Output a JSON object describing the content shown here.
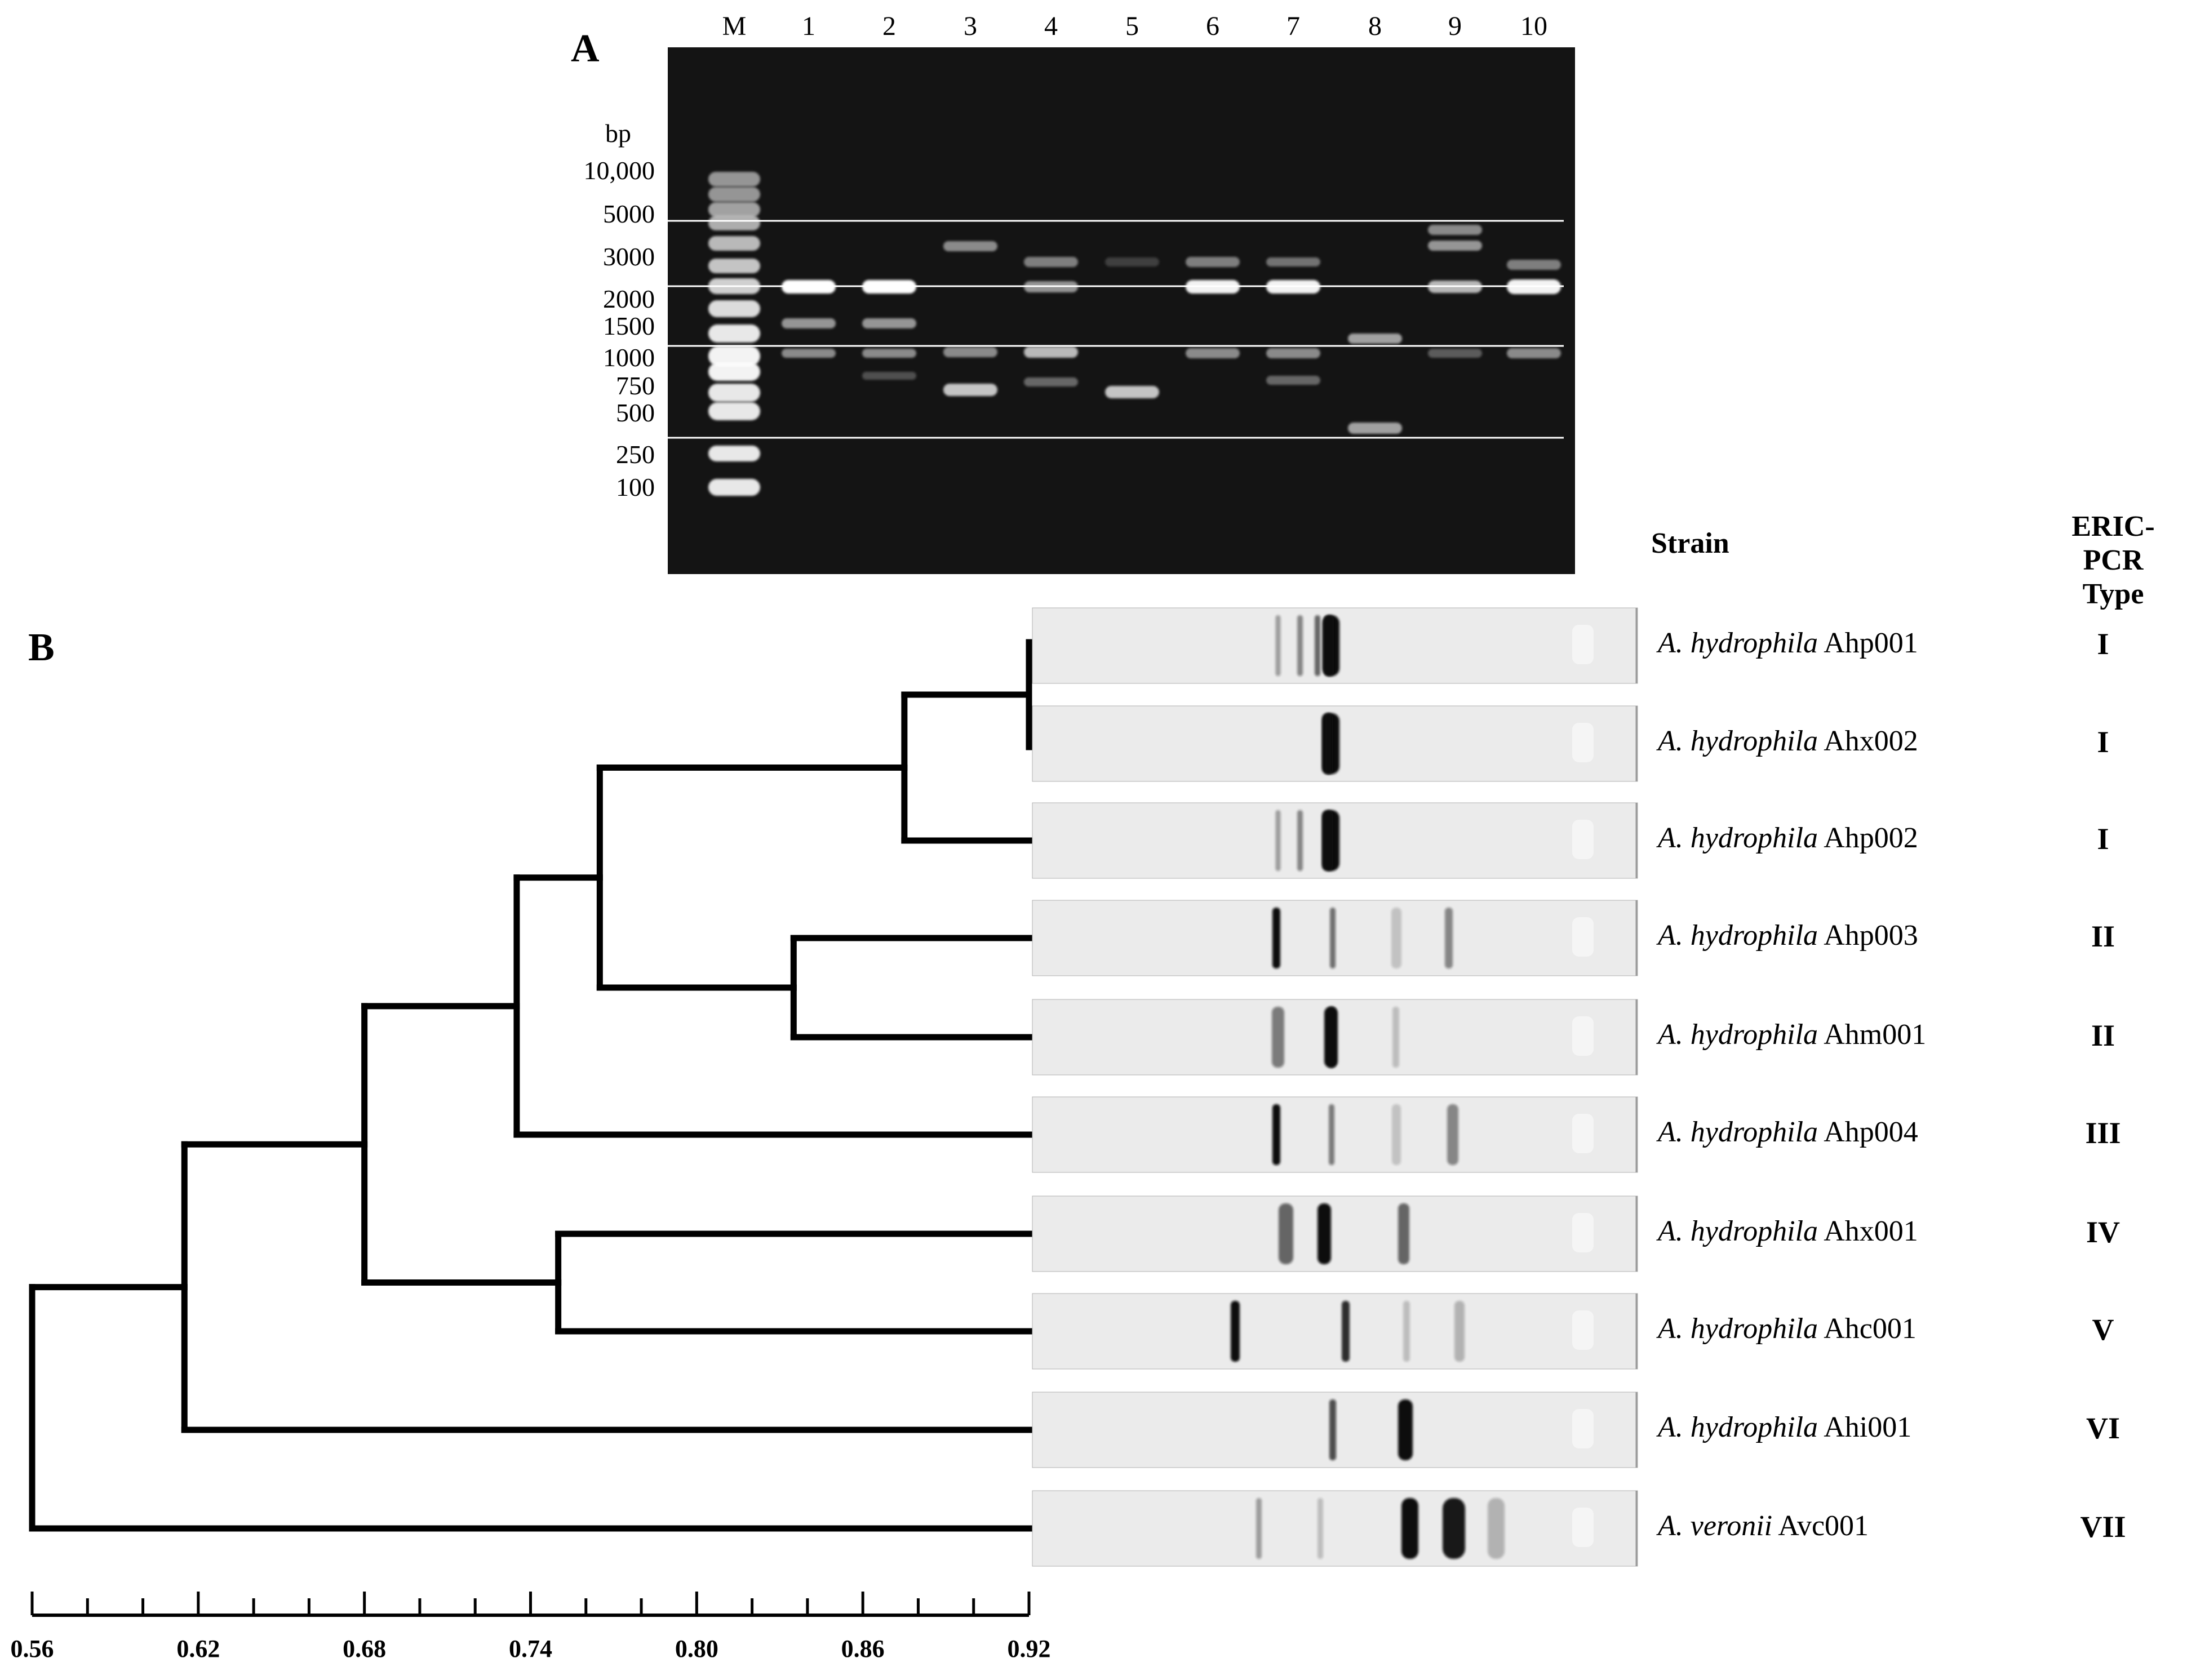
{
  "panel_a": {
    "label": "A",
    "lanes": [
      "M",
      "1",
      "2",
      "3",
      "4",
      "5",
      "6",
      "7",
      "8",
      "9",
      "10"
    ],
    "size_unit": "bp",
    "ladder_sizes": [
      "10,000",
      "5000",
      "3000",
      "2000",
      "1500",
      "1000",
      "750",
      "500",
      "250",
      "100"
    ],
    "guide_line_sizes": [
      "5000",
      "2000",
      "1500",
      "500"
    ],
    "colors": {
      "gel_background": "#121212",
      "band": "#ffffff",
      "guide_line": "#ffffff"
    }
  },
  "panel_b": {
    "label": "B",
    "strain_header": "Strain",
    "type_header_line1": "ERIC-PCR",
    "type_header_line2": "Type",
    "strains": [
      {
        "genus": "A. hydrophila",
        "id": "Ahp001",
        "type": "I"
      },
      {
        "genus": "A. hydrophila",
        "id": "Ahx002",
        "type": "I"
      },
      {
        "genus": "A. hydrophila",
        "id": "Ahp002",
        "type": "I"
      },
      {
        "genus": "A. hydrophila",
        "id": "Ahp003",
        "type": "II"
      },
      {
        "genus": "A. hydrophila",
        "id": "Ahm001",
        "type": "II"
      },
      {
        "genus": "A. hydrophila",
        "id": "Ahp004",
        "type": "III"
      },
      {
        "genus": "A. hydrophila",
        "id": "Ahx001",
        "type": "IV"
      },
      {
        "genus": "A. hydrophila",
        "id": "Ahc001",
        "type": "V"
      },
      {
        "genus": "A. hydrophila",
        "id": "Ahi001",
        "type": "VI"
      },
      {
        "genus": "A. veronii",
        "id": "Avc001",
        "type": "VII"
      }
    ],
    "scale": {
      "min": 0.56,
      "max": 0.92,
      "tick_labels": [
        "0.56",
        "0.62",
        "0.68",
        "0.74",
        "0.80",
        "0.86",
        "0.92"
      ]
    },
    "dendrogram_nodes": [
      {
        "similarity": 0.92,
        "joins": [
          "Ahp001",
          "Ahx002"
        ]
      },
      {
        "similarity": 0.875,
        "joins": [
          "Ahp001/Ahx002",
          "Ahp002"
        ]
      },
      {
        "similarity": 0.835,
        "joins": [
          "Ahp003",
          "Ahm001"
        ]
      },
      {
        "similarity": 0.765,
        "joins": [
          "cluster I",
          "cluster II"
        ]
      },
      {
        "similarity": 0.75,
        "joins": [
          "Ahx001",
          "Ahc001"
        ]
      },
      {
        "similarity": 0.735,
        "joins": [
          "clusters I-II",
          "Ahp004"
        ]
      },
      {
        "similarity": 0.68,
        "joins": [
          "clusters I-III",
          "Ahx001/Ahc001"
        ]
      },
      {
        "similarity": 0.615,
        "joins": [
          "clusters I-V",
          "Ahi001"
        ]
      },
      {
        "similarity": 0.56,
        "joins": [
          "A. hydrophila",
          "Avc001"
        ]
      }
    ],
    "colors": {
      "lane_background": "#ebebeb",
      "band": "#111111",
      "tree": "#000000"
    }
  }
}
